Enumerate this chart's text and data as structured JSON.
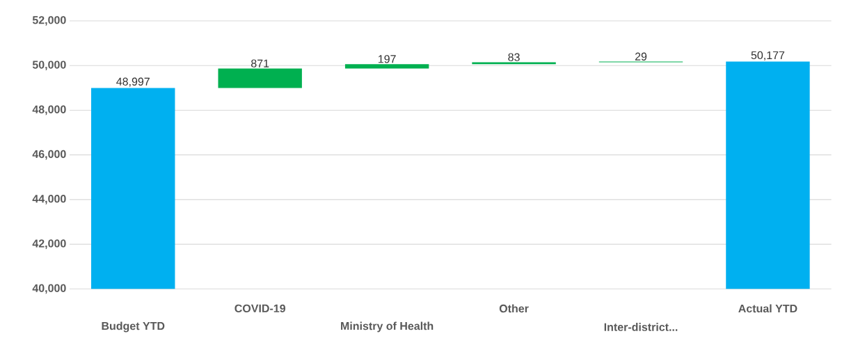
{
  "chart_data": {
    "type": "bar",
    "categories": [
      "Budget YTD",
      "COVID-19",
      "Ministry of Health",
      "Other",
      "Inter-district...",
      "Actual YTD"
    ],
    "values": [
      48997,
      871,
      197,
      83,
      29,
      50177
    ],
    "base": [
      null,
      48997,
      49868,
      50065,
      50148,
      null
    ],
    "colors": [
      "#00b0f0",
      "#00b050",
      "#00b050",
      "#00b050",
      "#00b050",
      "#00b0f0"
    ],
    "ylim": [
      40000,
      52000
    ],
    "yticks": [
      {
        "value": 40000,
        "label": "40,000"
      },
      {
        "value": 42000,
        "label": "42,000"
      },
      {
        "value": 44000,
        "label": "44,000"
      },
      {
        "value": 46000,
        "label": "46,000"
      },
      {
        "value": 48000,
        "label": "48,000"
      },
      {
        "value": 50000,
        "label": "50,000"
      },
      {
        "value": 52000,
        "label": "52,000"
      }
    ],
    "grid": "y",
    "value_labels": [
      "48,997",
      "871",
      "197",
      "83",
      "29",
      "50,177"
    ]
  }
}
